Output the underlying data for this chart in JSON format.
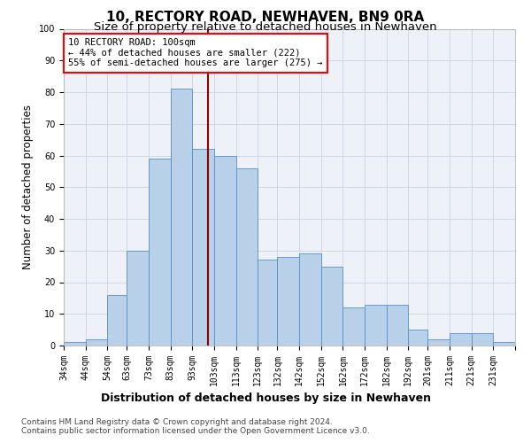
{
  "title": "10, RECTORY ROAD, NEWHAVEN, BN9 0RA",
  "subtitle": "Size of property relative to detached houses in Newhaven",
  "xlabel": "Distribution of detached houses by size in Newhaven",
  "ylabel": "Number of detached properties",
  "footer_line1": "Contains HM Land Registry data © Crown copyright and database right 2024.",
  "footer_line2": "Contains public sector information licensed under the Open Government Licence v3.0.",
  "annotation_line1": "10 RECTORY ROAD: 100sqm",
  "annotation_line2": "← 44% of detached houses are smaller (222)",
  "annotation_line3": "55% of semi-detached houses are larger (275) →",
  "bin_lefts": [
    34,
    44,
    54,
    63,
    73,
    83,
    93,
    103,
    113,
    123,
    132,
    142,
    152,
    162,
    172,
    182,
    192,
    201,
    211,
    221,
    231
  ],
  "bin_widths": [
    10,
    10,
    9,
    10,
    10,
    10,
    10,
    10,
    10,
    9,
    10,
    10,
    10,
    10,
    10,
    10,
    9,
    10,
    10,
    10,
    10
  ],
  "values": [
    1,
    2,
    16,
    30,
    59,
    81,
    62,
    60,
    56,
    27,
    28,
    29,
    25,
    12,
    13,
    13,
    5,
    2,
    4,
    4,
    1
  ],
  "vline_x": 100,
  "bar_color": "#b8d0e8",
  "bar_edge_color": "#5590c8",
  "vline_color": "#8b0000",
  "grid_color": "#c8d4e4",
  "background_color": "#eef2f8",
  "ylim": [
    0,
    100
  ],
  "yticks": [
    0,
    10,
    20,
    30,
    40,
    50,
    60,
    70,
    80,
    90,
    100
  ],
  "xtick_labels": [
    "34sqm",
    "44sqm",
    "54sqm",
    "63sqm",
    "73sqm",
    "83sqm",
    "93sqm",
    "103sqm",
    "113sqm",
    "123sqm",
    "132sqm",
    "142sqm",
    "152sqm",
    "162sqm",
    "172sqm",
    "182sqm",
    "192sqm",
    "201sqm",
    "211sqm",
    "221sqm",
    "231sqm"
  ],
  "title_fontsize": 11,
  "subtitle_fontsize": 9.5,
  "ylabel_fontsize": 8.5,
  "xlabel_fontsize": 9,
  "tick_fontsize": 7,
  "annotation_fontsize": 7.5,
  "footer_fontsize": 6.5
}
